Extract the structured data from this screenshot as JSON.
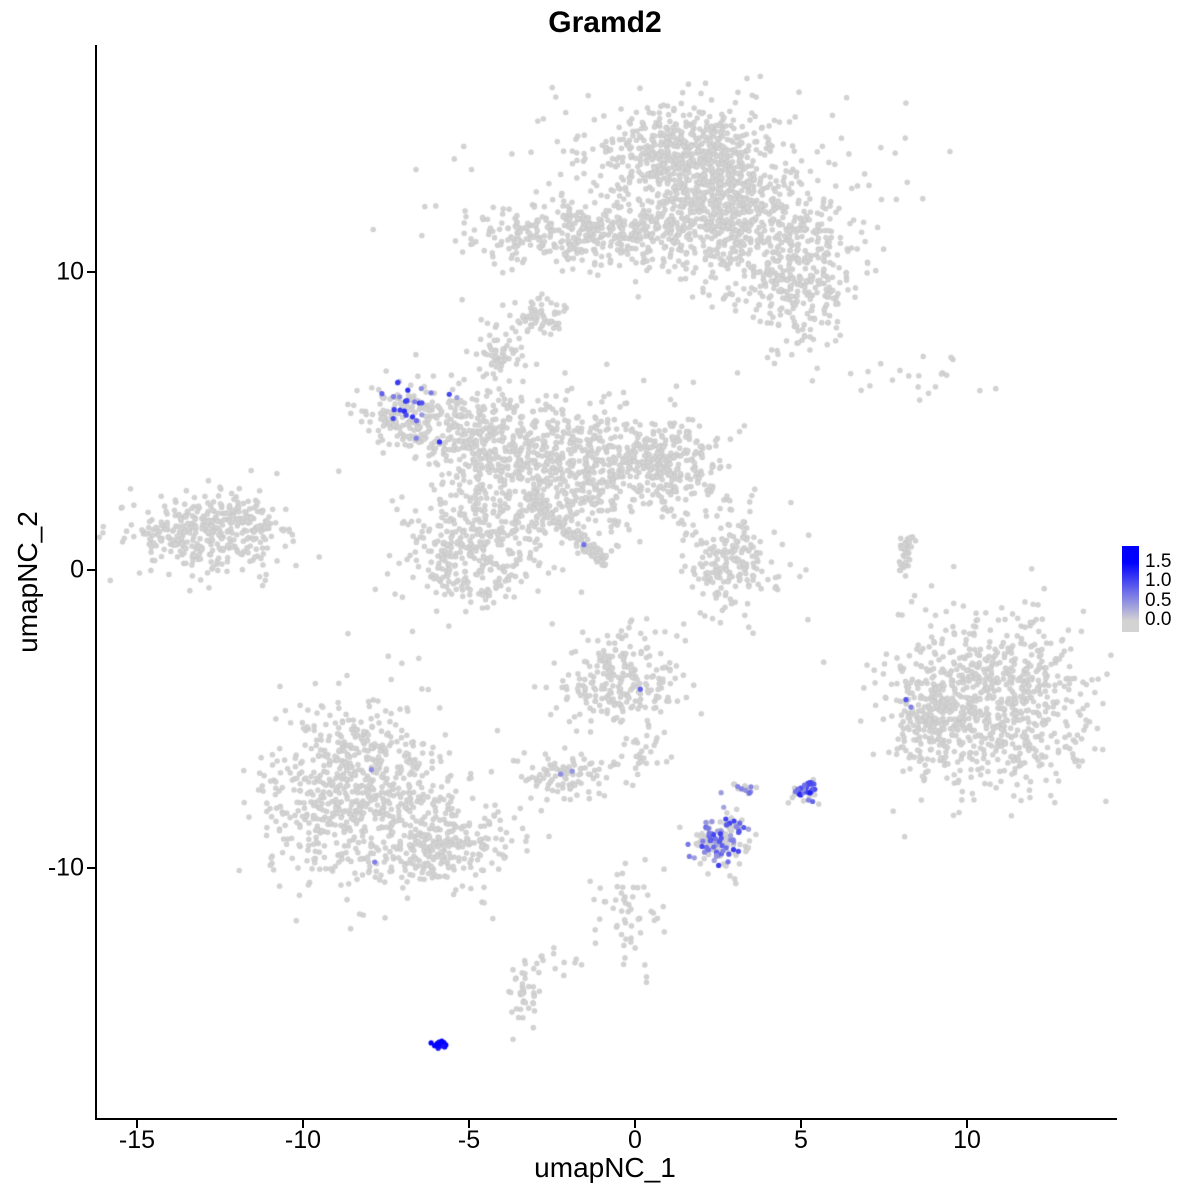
{
  "title": "Gramd2",
  "axes": {
    "x": {
      "label": "umapNC_1",
      "ticks": [
        {
          "label": "-15",
          "value": -15
        },
        {
          "label": "-10",
          "value": -10
        },
        {
          "label": "-5",
          "value": -5
        },
        {
          "label": "0",
          "value": 0
        },
        {
          "label": "5",
          "value": 5
        },
        {
          "label": "10",
          "value": 10
        }
      ]
    },
    "y": {
      "label": "umapNC_2",
      "ticks": [
        {
          "label": "10",
          "value": 10
        },
        {
          "label": "0",
          "value": 0
        },
        {
          "label": "-10",
          "value": -10
        }
      ]
    }
  },
  "legend": {
    "ticks": [
      {
        "label": "1.5",
        "value": 1.5
      },
      {
        "label": "1.0",
        "value": 1.0
      },
      {
        "label": "0.5",
        "value": 0.5
      },
      {
        "label": "0.0",
        "value": 0.0
      }
    ],
    "low_color": "#D3D3D3",
    "high_color": "#0000FF",
    "vmax": 1.5
  },
  "chart_data": {
    "type": "scatter",
    "title": "Gramd2",
    "xlabel": "umapNC_1",
    "ylabel": "umapNC_2",
    "xlim": [
      -16.3,
      14.5
    ],
    "ylim": [
      -18.4,
      17.6
    ],
    "grid": false,
    "legend_position": "right",
    "point_color_low": "#D3D3D3",
    "point_color_high": "#0000FF",
    "value_range": [
      0,
      1.5
    ],
    "point_radius_px": 2.6,
    "gray_clusters": [
      {
        "name": "top-main-blob",
        "n": 550,
        "cx": 1.6,
        "cy": 13.9,
        "sx": 1.2,
        "sy": 0.85
      },
      {
        "name": "top-left-band",
        "n": 450,
        "cx": -1.2,
        "cy": 11.3,
        "sx": 1.9,
        "sy": 0.55
      },
      {
        "name": "top-connector",
        "n": 250,
        "cx": 2.6,
        "cy": 12.2,
        "sx": 0.9,
        "sy": 0.9
      },
      {
        "name": "top-right-arm",
        "n": 400,
        "cx": 4.2,
        "cy": 10.9,
        "sx": 1.3,
        "sy": 1.2
      },
      {
        "name": "top-right-tail",
        "n": 120,
        "cx": 5.0,
        "cy": 9.0,
        "sx": 0.7,
        "sy": 0.8
      },
      {
        "name": "top-halo",
        "n": 250,
        "cx": 1.2,
        "cy": 12.8,
        "sx": 2.6,
        "sy": 1.6
      },
      {
        "name": "upper-right-sparse",
        "n": 22,
        "cx": 8.6,
        "cy": 6.4,
        "sx": 1.5,
        "sy": 0.35
      },
      {
        "name": "far-left-cluster",
        "n": 330,
        "cx": -13.0,
        "cy": 1.2,
        "sx": 1.2,
        "sy": 0.7
      },
      {
        "name": "far-left-tail",
        "n": 60,
        "cx": -11.6,
        "cy": 1.6,
        "sx": 0.5,
        "sy": 0.35
      },
      {
        "name": "central-upper-left-patch",
        "n": 170,
        "cx": -6.8,
        "cy": 5.2,
        "sx": 0.7,
        "sy": 0.6
      },
      {
        "name": "central-main",
        "n": 700,
        "cx": -2.3,
        "cy": 3.4,
        "sx": 1.7,
        "sy": 1.2
      },
      {
        "name": "central-lower-lobe",
        "n": 330,
        "cx": -5.1,
        "cy": 0.6,
        "sx": 1.1,
        "sy": 1.0
      },
      {
        "name": "central-diagonal-streak",
        "n": 110,
        "type": "line",
        "x1": -3.2,
        "y1": 2.4,
        "x2": -0.9,
        "y2": 0.2,
        "jitter": 0.12
      },
      {
        "name": "central-bridge",
        "n": 220,
        "cx": -4.7,
        "cy": 4.3,
        "sx": 0.9,
        "sy": 0.7
      },
      {
        "name": "central-top-knob",
        "n": 60,
        "cx": -4.2,
        "cy": 7.2,
        "sx": 0.35,
        "sy": 0.5
      },
      {
        "name": "central-upper-clump",
        "n": 60,
        "cx": -2.9,
        "cy": 8.5,
        "sx": 0.5,
        "sy": 0.35
      },
      {
        "name": "central-right-extension",
        "n": 260,
        "cx": 0.8,
        "cy": 3.6,
        "sx": 0.9,
        "sy": 0.8
      },
      {
        "name": "mid-right-crescent",
        "n": 190,
        "cx": 2.9,
        "cy": 0.3,
        "sx": 0.8,
        "sy": 0.95
      },
      {
        "name": "right-vertical-streak",
        "n": 40,
        "type": "line",
        "x1": 7.9,
        "y1": -0.2,
        "x2": 8.2,
        "y2": 1.2,
        "jitter": 0.1
      },
      {
        "name": "right-big-cluster",
        "n": 800,
        "cx": 10.6,
        "cy": -4.5,
        "sx": 1.5,
        "sy": 1.4
      },
      {
        "name": "right-big-protrusion",
        "n": 120,
        "cx": 8.8,
        "cy": -4.9,
        "sx": 0.5,
        "sy": 0.85
      },
      {
        "name": "bottom-left-cluster",
        "n": 700,
        "cx": -8.5,
        "cy": -7.4,
        "sx": 1.4,
        "sy": 1.5
      },
      {
        "name": "bottom-left-arm",
        "n": 260,
        "cx": -5.8,
        "cy": -9.2,
        "sx": 1.1,
        "sy": 0.8
      },
      {
        "name": "center-bottom-cluster",
        "n": 240,
        "cx": -0.5,
        "cy": -3.7,
        "sx": 0.85,
        "sy": 0.85
      },
      {
        "name": "small-left-of-center",
        "n": 90,
        "cx": -2.1,
        "cy": -6.9,
        "sx": 0.65,
        "sy": 0.4
      },
      {
        "name": "purple-cluster-gray-base",
        "n": 80,
        "cx": 2.5,
        "cy": -9.1,
        "sx": 0.5,
        "sy": 0.5
      },
      {
        "name": "lower-trail",
        "n": 55,
        "cx": -0.4,
        "cy": -11.6,
        "sx": 0.55,
        "sy": 1.2
      },
      {
        "name": "bottom-small-cluster",
        "n": 40,
        "cx": -3.4,
        "cy": -14.3,
        "sx": 0.25,
        "sy": 0.6
      },
      {
        "name": "tiny-mid-clump-gray",
        "n": 10,
        "cx": 3.3,
        "cy": -7.4,
        "sx": 0.2,
        "sy": 0.15
      },
      {
        "name": "tiny-right-clump-gray",
        "n": 15,
        "cx": 5.05,
        "cy": -7.5,
        "sx": 0.25,
        "sy": 0.25
      },
      {
        "name": "between-bottom-sparse",
        "n": 25,
        "cx": 0.2,
        "cy": -6.2,
        "sx": 0.45,
        "sy": 0.5
      },
      {
        "name": "bottom-mid-sparse",
        "n": 12,
        "cx": -2.5,
        "cy": -13.1,
        "sx": 0.3,
        "sy": 0.4
      }
    ],
    "expression_clusters": [
      {
        "name": "expr-central-upper-left",
        "n": 26,
        "cx": -6.8,
        "cy": 5.4,
        "sx": 0.6,
        "sy": 0.45,
        "vmin": 0.3,
        "vmax": 1.2
      },
      {
        "name": "expr-bottom-center",
        "n": 60,
        "cx": 2.5,
        "cy": -9.1,
        "sx": 0.45,
        "sy": 0.42,
        "vmin": 0.3,
        "vmax": 1.1
      },
      {
        "name": "expr-small-right",
        "n": 26,
        "cx": 5.05,
        "cy": -7.4,
        "sx": 0.16,
        "sy": 0.2,
        "vmin": 0.5,
        "vmax": 1.3
      },
      {
        "name": "expr-dark-blue-clump",
        "n": 14,
        "cx": -5.95,
        "cy": -15.9,
        "sx": 0.1,
        "sy": 0.08,
        "vmin": 1.3,
        "vmax": 1.6
      },
      {
        "name": "expr-tiny-mid",
        "n": 6,
        "cx": 3.3,
        "cy": -7.35,
        "sx": 0.12,
        "sy": 0.1,
        "vmin": 0.4,
        "vmax": 0.9
      }
    ],
    "expression_singles": [
      {
        "x": -1.6,
        "y": 0.85,
        "v": 0.7
      },
      {
        "x": 8.1,
        "y": -4.35,
        "v": 0.9
      },
      {
        "x": 8.25,
        "y": -4.6,
        "v": 0.6
      },
      {
        "x": 0.1,
        "y": -4.0,
        "v": 0.8
      },
      {
        "x": -2.3,
        "y": -6.85,
        "v": 0.5
      },
      {
        "x": -1.95,
        "y": -6.75,
        "v": 0.45
      },
      {
        "x": -8.0,
        "y": -6.7,
        "v": 0.5
      },
      {
        "x": -7.9,
        "y": -9.8,
        "v": 0.6
      }
    ]
  }
}
